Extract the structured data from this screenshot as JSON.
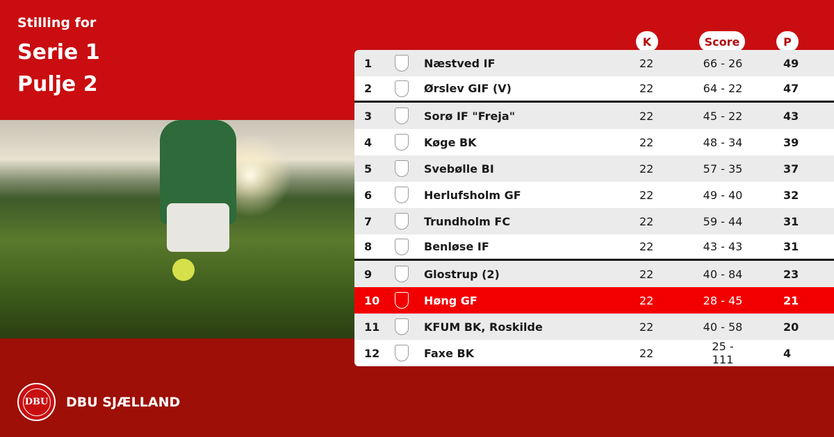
{
  "header": {
    "line1": "Stilling for",
    "line2": "Serie 1",
    "line3": "Pulje 2"
  },
  "columns": {
    "k": "K",
    "score": "Score",
    "p": "P"
  },
  "rows": [
    {
      "pos": "1",
      "team": "Næstved IF",
      "k": "22",
      "score": "66 - 26",
      "p": "49"
    },
    {
      "pos": "2",
      "team": "Ørslev GIF (V)",
      "k": "22",
      "score": "64 - 22",
      "p": "47"
    },
    {
      "pos": "3",
      "team": "Sorø IF \"Freja\"",
      "k": "22",
      "score": "45 - 22",
      "p": "43"
    },
    {
      "pos": "4",
      "team": "Køge BK",
      "k": "22",
      "score": "48 - 34",
      "p": "39"
    },
    {
      "pos": "5",
      "team": "Svebølle BI",
      "k": "22",
      "score": "57 - 35",
      "p": "37"
    },
    {
      "pos": "6",
      "team": "Herlufsholm GF",
      "k": "22",
      "score": "49 - 40",
      "p": "32"
    },
    {
      "pos": "7",
      "team": "Trundholm FC",
      "k": "22",
      "score": "59 - 44",
      "p": "31"
    },
    {
      "pos": "8",
      "team": "Benløse IF",
      "k": "22",
      "score": "43 - 43",
      "p": "31"
    },
    {
      "pos": "9",
      "team": "Glostrup  (2)",
      "k": "22",
      "score": "40 - 84",
      "p": "23"
    },
    {
      "pos": "10",
      "team": "Høng GF",
      "k": "22",
      "score": "28 - 45",
      "p": "21"
    },
    {
      "pos": "11",
      "team": "KFUM BK, Roskilde",
      "k": "22",
      "score": "40 - 58",
      "p": "20"
    },
    {
      "pos": "12",
      "team": "Faxe BK",
      "k": "22",
      "score": "25 - 111",
      "p": "4"
    }
  ],
  "highlight_color": "#f20000",
  "footer": {
    "brand": "DBU SJÆLLAND",
    "logo_text": "DBU"
  }
}
